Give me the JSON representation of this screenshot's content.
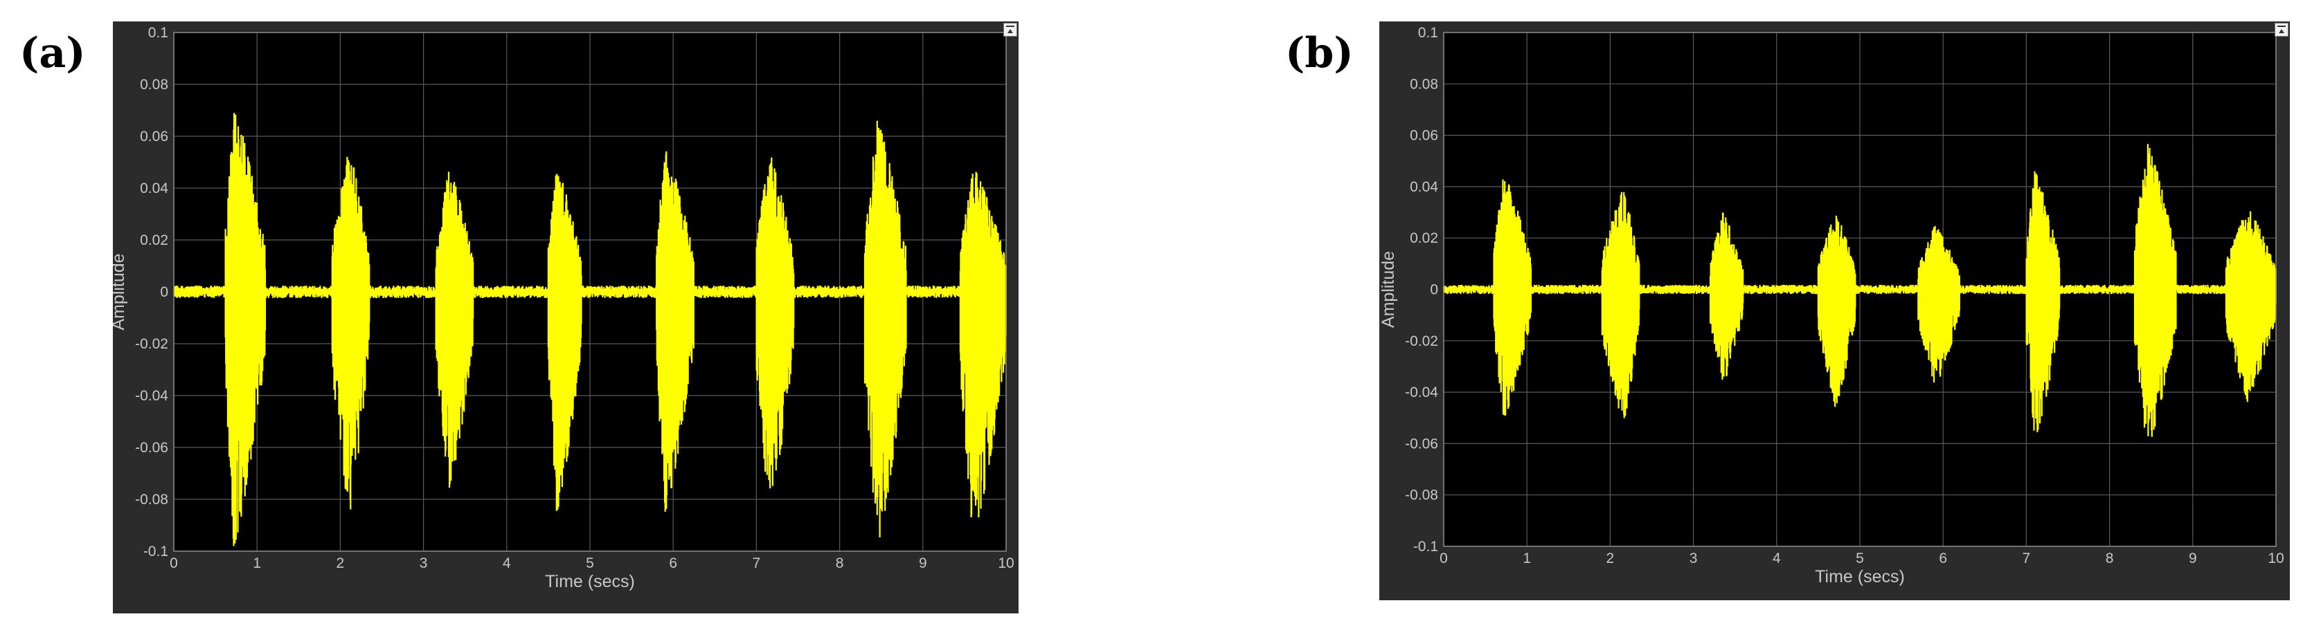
{
  "panels": {
    "a": {
      "label": "(a)"
    },
    "b": {
      "label": "(b)"
    }
  },
  "chart_data": [
    {
      "type": "line",
      "panel": "(a)",
      "xlabel": "Time (secs)",
      "ylabel": "Amplitude",
      "xlim": [
        0,
        10
      ],
      "ylim": [
        -0.1,
        0.1
      ],
      "x_ticks": [
        0,
        1,
        2,
        3,
        4,
        5,
        6,
        7,
        8,
        9,
        10
      ],
      "y_ticks": [
        0.1,
        0.08,
        0.06,
        0.04,
        0.02,
        0,
        -0.02,
        -0.04,
        -0.06,
        -0.08,
        -0.1
      ],
      "x_tick_labels": [
        "0",
        "1",
        "2",
        "3",
        "4",
        "5",
        "6",
        "7",
        "8",
        "9",
        "10"
      ],
      "y_tick_labels": [
        "0.1",
        "0.08",
        "0.06",
        "0.04",
        "0.02",
        "0",
        "-0.02",
        "-0.04",
        "-0.06",
        "-0.08",
        "-0.1"
      ],
      "grid": true,
      "background_color": "#000000",
      "trace_color": "#ffff00",
      "series": [
        {
          "envelope": [
            {
              "start": 0.62,
              "end": 1.1,
              "peak_time": 0.72,
              "max": 0.071,
              "min": -0.098
            },
            {
              "start": 1.9,
              "end": 2.35,
              "peak_time": 2.1,
              "max": 0.055,
              "min": -0.087
            },
            {
              "start": 3.15,
              "end": 3.6,
              "peak_time": 3.3,
              "max": 0.048,
              "min": -0.078
            },
            {
              "start": 4.5,
              "end": 4.9,
              "peak_time": 4.6,
              "max": 0.048,
              "min": -0.085
            },
            {
              "start": 5.8,
              "end": 6.25,
              "peak_time": 5.9,
              "max": 0.055,
              "min": -0.085
            },
            {
              "start": 7.0,
              "end": 7.45,
              "peak_time": 7.15,
              "max": 0.054,
              "min": -0.086
            },
            {
              "start": 8.3,
              "end": 8.8,
              "peak_time": 8.45,
              "max": 0.066,
              "min": -0.098
            },
            {
              "start": 9.45,
              "end": 10.0,
              "peak_time": 9.6,
              "max": 0.048,
              "min": -0.095
            }
          ],
          "noise_floor": 0.002
        }
      ]
    },
    {
      "type": "line",
      "panel": "(b)",
      "xlabel": "Time (secs)",
      "ylabel": "Amplitude",
      "xlim": [
        0,
        10
      ],
      "ylim": [
        -0.1,
        0.1
      ],
      "x_ticks": [
        0,
        1,
        2,
        3,
        4,
        5,
        6,
        7,
        8,
        9,
        10
      ],
      "y_ticks": [
        0.1,
        0.08,
        0.06,
        0.04,
        0.02,
        0,
        -0.02,
        -0.04,
        -0.06,
        -0.08,
        -0.1
      ],
      "x_tick_labels": [
        "0",
        "1",
        "2",
        "3",
        "4",
        "5",
        "6",
        "7",
        "8",
        "9",
        "10"
      ],
      "y_tick_labels": [
        "0.1",
        "0.08",
        "0.06",
        "0.04",
        "0.02",
        "0",
        "-0.02",
        "-0.04",
        "-0.06",
        "-0.08",
        "-0.1"
      ],
      "grid": true,
      "background_color": "#000000",
      "trace_color": "#ffff00",
      "series": [
        {
          "envelope": [
            {
              "start": 0.6,
              "end": 1.05,
              "peak_time": 0.72,
              "max": 0.045,
              "min": -0.05
            },
            {
              "start": 1.9,
              "end": 2.35,
              "peak_time": 2.15,
              "max": 0.04,
              "min": -0.053
            },
            {
              "start": 3.2,
              "end": 3.6,
              "peak_time": 3.35,
              "max": 0.03,
              "min": -0.037
            },
            {
              "start": 4.5,
              "end": 4.95,
              "peak_time": 4.7,
              "max": 0.03,
              "min": -0.046
            },
            {
              "start": 5.7,
              "end": 6.2,
              "peak_time": 5.9,
              "max": 0.025,
              "min": -0.038
            },
            {
              "start": 7.0,
              "end": 7.4,
              "peak_time": 7.1,
              "max": 0.046,
              "min": -0.058
            },
            {
              "start": 8.3,
              "end": 8.8,
              "peak_time": 8.45,
              "max": 0.057,
              "min": -0.062
            },
            {
              "start": 9.4,
              "end": 10.0,
              "peak_time": 9.65,
              "max": 0.032,
              "min": -0.044
            }
          ],
          "noise_floor": 0.0015
        }
      ]
    }
  ]
}
